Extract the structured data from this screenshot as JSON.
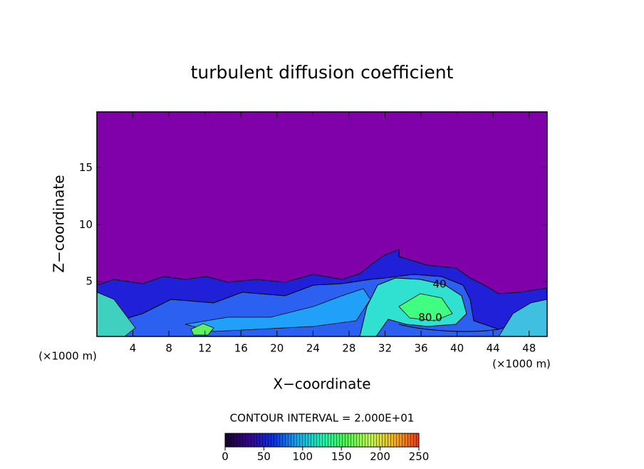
{
  "chart_data": {
    "type": "contour",
    "title": "turbulent diffusion coefficient",
    "x_label": "X−coordinate",
    "y_label": "Z−coordinate",
    "x_unit_label": "(×1000 m)",
    "contour_interval_label": "CONTOUR INTERVAL = 2.000E+01",
    "xlim": [
      0,
      50
    ],
    "xticks": [
      4,
      8,
      12,
      16,
      20,
      24,
      28,
      32,
      36,
      40,
      44,
      48
    ],
    "ylim": [
      0.2,
      19.9
    ],
    "yticks": [
      5,
      10,
      15
    ],
    "contour_labels": [
      "40",
      "80.0"
    ],
    "colorbar": {
      "lim": [
        0,
        250
      ],
      "ticks": [
        0,
        50,
        100,
        150,
        200,
        250
      ],
      "colors": [
        "#1a0030",
        "#3a00a0",
        "#0030ff",
        "#00b0ff",
        "#00ffb0",
        "#40ff40",
        "#c0ff40",
        "#ffb000",
        "#ff3000"
      ]
    },
    "background_color": "#8000aa"
  }
}
